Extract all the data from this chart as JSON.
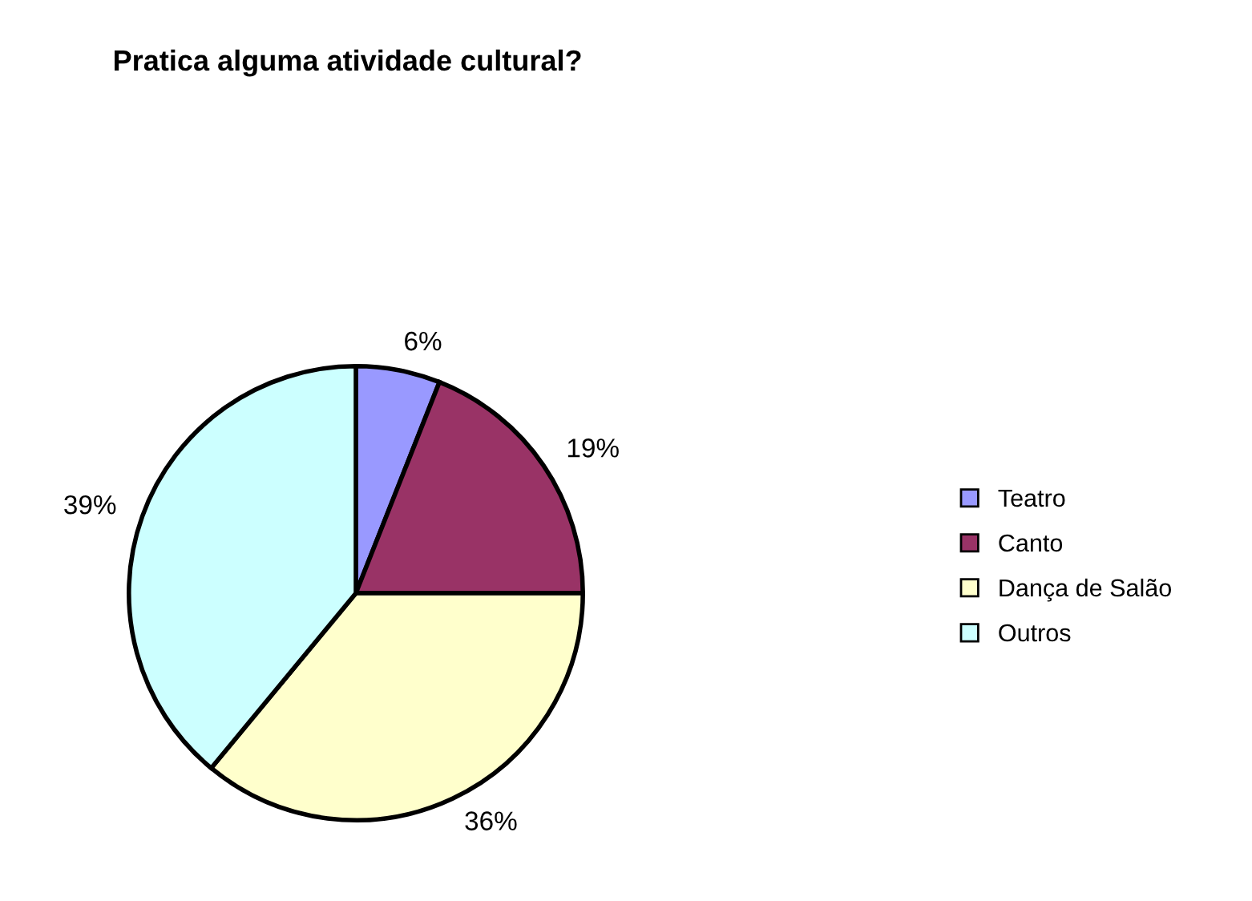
{
  "chart_data": {
    "type": "pie",
    "title": "Pratica alguma atividade cultural?",
    "categories": [
      "Teatro",
      "Canto",
      "Dança de Salão",
      "Outros"
    ],
    "values": [
      6,
      19,
      36,
      39
    ],
    "value_labels": [
      "6%",
      "19%",
      "36%",
      "39%"
    ],
    "colors": [
      "#9999ff",
      "#993366",
      "#ffffcc",
      "#ccffff"
    ],
    "legend": "right"
  }
}
